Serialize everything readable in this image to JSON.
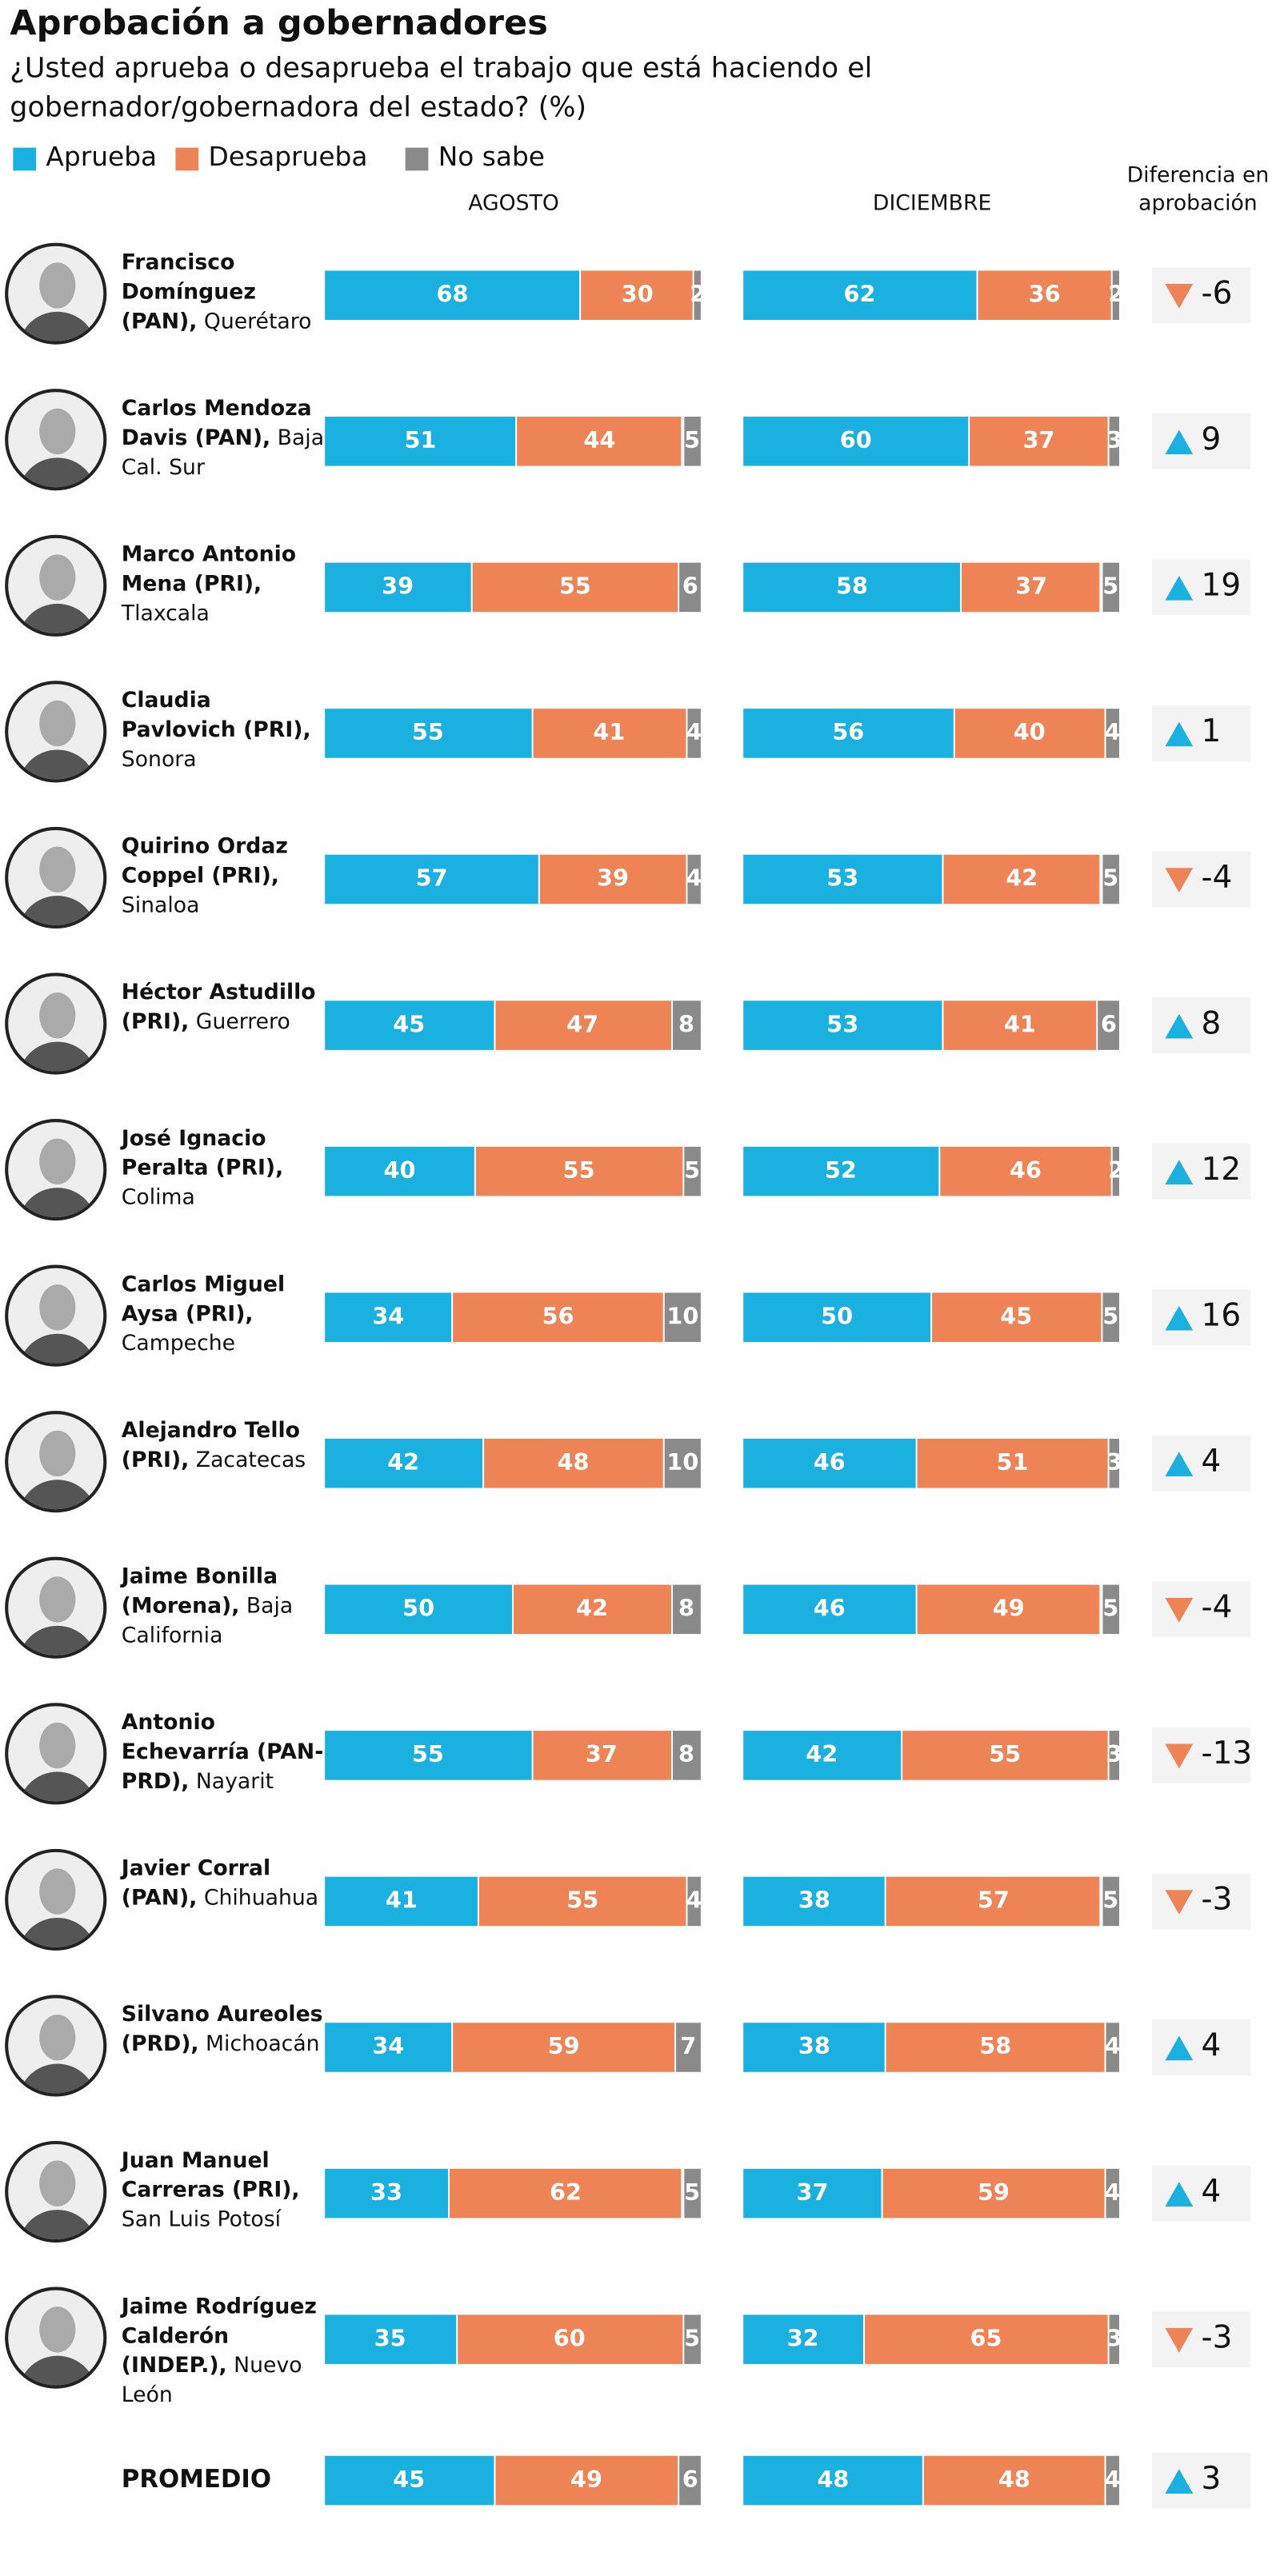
{
  "chart_data": {
    "type": "stacked-bar",
    "title": "Aprobación a gobernadores",
    "subtitle": "¿Usted aprueba o desaprueba el trabajo que está haciendo el gobernador/gobernadora del estado? (%)",
    "panels": [
      "AGOSTO",
      "DICIEMBRE"
    ],
    "difference_title": "Diferencia en aprobación",
    "categories": [
      "Francisco Domínguez (PAN),",
      "Carlos Mendoza Davis (PAN),",
      "Marco Antonio Mena (PRI),",
      "Claudia Pavlovich (PRI),",
      "Quirino Ordaz Coppel (PRI),",
      "Héctor Astudillo (PRI),",
      "José Ignacio Peralta (PRI),",
      "Carlos Miguel Aysa (PRI),",
      "Alejandro Tello (PRI),",
      "Jaime Bonilla (Morena),",
      "Antonio Echevarría (PAN-PRD),",
      "Javier Corral (PAN),",
      "Silvano Aureoles (PRD),",
      "Juan Manuel Carreras (PRI),",
      "Jaime Rodríguez Calderón (INDEP.),",
      "PROMEDIO"
    ],
    "states": [
      "Querétaro",
      "Baja Cal. Sur",
      "Tlaxcala",
      "Sonora",
      "Sinaloa",
      "Guerrero",
      "Colima",
      "Campeche",
      "Zacatecas",
      "Baja California",
      "Nayarit",
      "Chihuahua",
      "Michoacán",
      "San Luis Potosí",
      "Nuevo León",
      null
    ],
    "series": [
      {
        "name": "Aprueba",
        "color": "#1ab0e0",
        "values": [
          [
            68,
            51,
            39,
            55,
            57,
            45,
            40,
            34,
            42,
            50,
            55,
            41,
            34,
            33,
            35,
            45
          ],
          [
            62,
            60,
            58,
            56,
            53,
            53,
            52,
            50,
            46,
            46,
            42,
            38,
            38,
            37,
            32,
            48
          ]
        ]
      },
      {
        "name": "Desaprueba",
        "color": "#ee8455",
        "values": [
          [
            30,
            44,
            55,
            41,
            39,
            47,
            55,
            56,
            48,
            42,
            37,
            55,
            59,
            62,
            60,
            49
          ],
          [
            36,
            37,
            37,
            40,
            42,
            41,
            46,
            45,
            51,
            49,
            55,
            57,
            58,
            59,
            65,
            48
          ]
        ]
      },
      {
        "name": "No sabe",
        "color": "#8a8a8a",
        "values": [
          [
            2,
            5,
            6,
            4,
            4,
            8,
            5,
            10,
            10,
            8,
            8,
            4,
            7,
            5,
            5,
            6
          ],
          [
            2,
            3,
            5,
            4,
            5,
            6,
            2,
            5,
            3,
            5,
            3,
            5,
            4,
            4,
            3,
            4
          ]
        ]
      }
    ],
    "difference": [
      -6,
      9,
      19,
      1,
      -4,
      8,
      12,
      16,
      4,
      -4,
      -13,
      -3,
      4,
      4,
      -3,
      3
    ],
    "up_color": "#1ab0e0",
    "down_color": "#ee8455",
    "xlim": [
      0,
      100
    ]
  }
}
